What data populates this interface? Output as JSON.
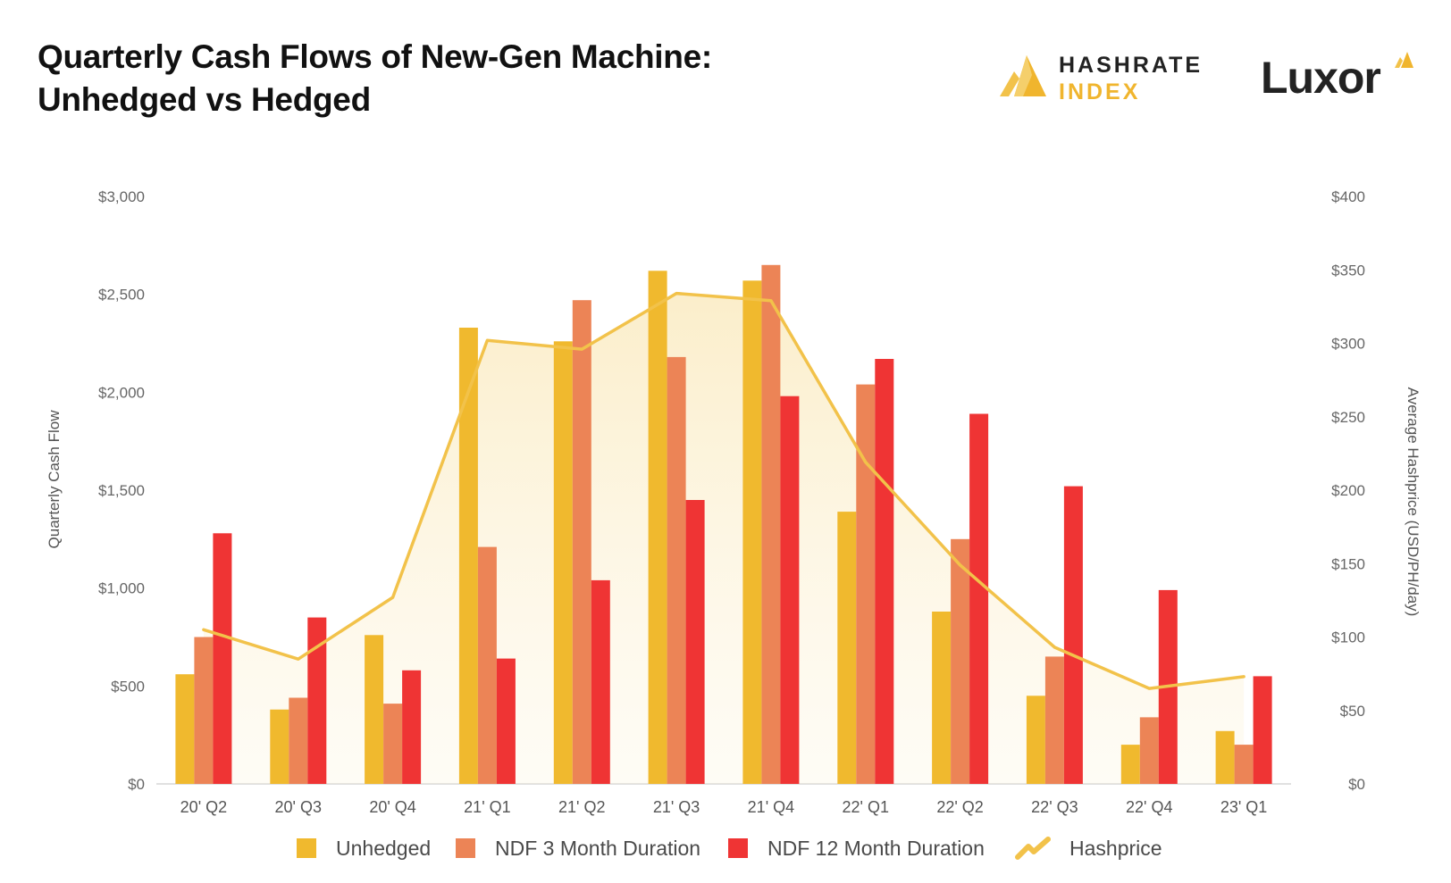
{
  "header": {
    "title_line1": "Quarterly Cash Flows of New-Gen Machine:",
    "title_line2": "Unhedged vs Hedged"
  },
  "brands": {
    "hashrate_index_line1": "HASHRATE",
    "hashrate_index_line2": "INDEX",
    "luxor": "Luxor"
  },
  "colors": {
    "unhedged": "#f0b92e",
    "ndf3": "#ec8456",
    "ndf12": "#ef3434",
    "hashprice": "#f2c24a",
    "grid": "#e8e8e8",
    "tick_text": "#666666"
  },
  "chart_data": {
    "type": "bar",
    "title": "Quarterly Cash Flows of New-Gen Machine: Unhedged vs Hedged",
    "categories": [
      "20' Q2",
      "20' Q3",
      "20' Q4",
      "21' Q1",
      "21' Q2",
      "21' Q3",
      "21' Q4",
      "22' Q1",
      "22' Q2",
      "22' Q3",
      "22' Q4",
      "23' Q1"
    ],
    "series": [
      {
        "name": "Unhedged",
        "axis": "left",
        "type": "bar",
        "values": [
          560,
          380,
          760,
          2330,
          2260,
          2620,
          2570,
          1390,
          880,
          450,
          200,
          270
        ]
      },
      {
        "name": "NDF 3 Month Duration",
        "axis": "left",
        "type": "bar",
        "values": [
          750,
          440,
          410,
          1210,
          2470,
          2180,
          2650,
          2040,
          1250,
          650,
          340,
          200
        ]
      },
      {
        "name": "NDF 12 Month Duration",
        "axis": "left",
        "type": "bar",
        "values": [
          1280,
          850,
          580,
          640,
          1040,
          1450,
          1980,
          2170,
          1890,
          1520,
          990,
          550
        ]
      },
      {
        "name": "Hashprice",
        "axis": "right",
        "type": "area-line",
        "values": [
          105,
          85,
          127,
          302,
          296,
          334,
          329,
          219,
          149,
          93,
          65,
          73
        ]
      }
    ],
    "ylabel": "Quarterly Cash Flow",
    "y2label": "Average Hashprice (USD/PH/day)",
    "ylim": [
      0,
      3000
    ],
    "y2lim": [
      0,
      400
    ],
    "yticks": [
      "$0",
      "$500",
      "$1,000",
      "$1,500",
      "$2,000",
      "$2,500",
      "$3,000"
    ],
    "y2ticks": [
      "$0",
      "$50",
      "$100",
      "$150",
      "$200",
      "$250",
      "$300",
      "$350",
      "$400"
    ],
    "legend": [
      "Unhedged",
      "NDF 3 Month Duration",
      "NDF 12 Month Duration",
      "Hashprice"
    ],
    "legend_position": "bottom"
  }
}
